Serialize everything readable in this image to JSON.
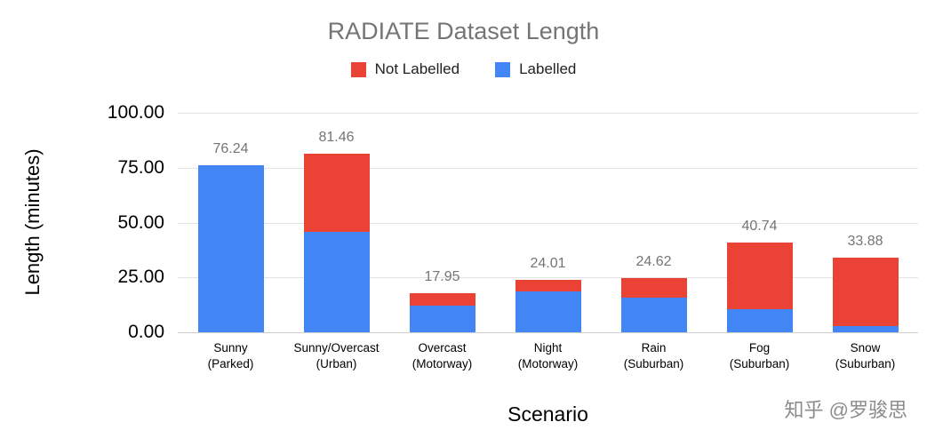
{
  "chart_data": {
    "type": "bar",
    "stacked": true,
    "title": "RADIATE Dataset Length",
    "xlabel": "Scenario",
    "ylabel": "Length (minutes)",
    "ylim": [
      0,
      100
    ],
    "grid": "horizontal",
    "legend_position": "top",
    "yticks": [
      {
        "label": "100.00",
        "value": 100
      },
      {
        "label": "75.00",
        "value": 75
      },
      {
        "label": "50.00",
        "value": 50
      },
      {
        "label": "25.00",
        "value": 25
      },
      {
        "label": "0.00",
        "value": 0
      }
    ],
    "categories": [
      [
        "Sunny",
        "(Parked)"
      ],
      [
        "Sunny/Overcast",
        "(Urban)"
      ],
      [
        "Overcast",
        "(Motorway)"
      ],
      [
        "Night",
        "(Motorway)"
      ],
      [
        "Rain",
        "(Suburban)"
      ],
      [
        "Fog",
        "(Suburban)"
      ],
      [
        "Snow",
        "(Suburban)"
      ]
    ],
    "series": [
      {
        "name": "Labelled",
        "color": "#4285f4",
        "values": [
          76.24,
          45.61,
          12.01,
          18.63,
          15.81,
          10.49,
          2.8
        ]
      },
      {
        "name": "Not Labelled",
        "color": "#ea4335",
        "values": [
          0,
          35.85,
          5.94,
          5.38,
          8.81,
          30.25,
          31.08
        ]
      }
    ],
    "totals": [
      "76.24",
      "81.46",
      "17.95",
      "24.01",
      "24.62",
      "40.74",
      "33.88"
    ],
    "legend": [
      {
        "label": "Not Labelled",
        "color": "#ea4335"
      },
      {
        "label": "Labelled",
        "color": "#4285f4"
      }
    ]
  },
  "watermark": "知乎 @罗骏思"
}
